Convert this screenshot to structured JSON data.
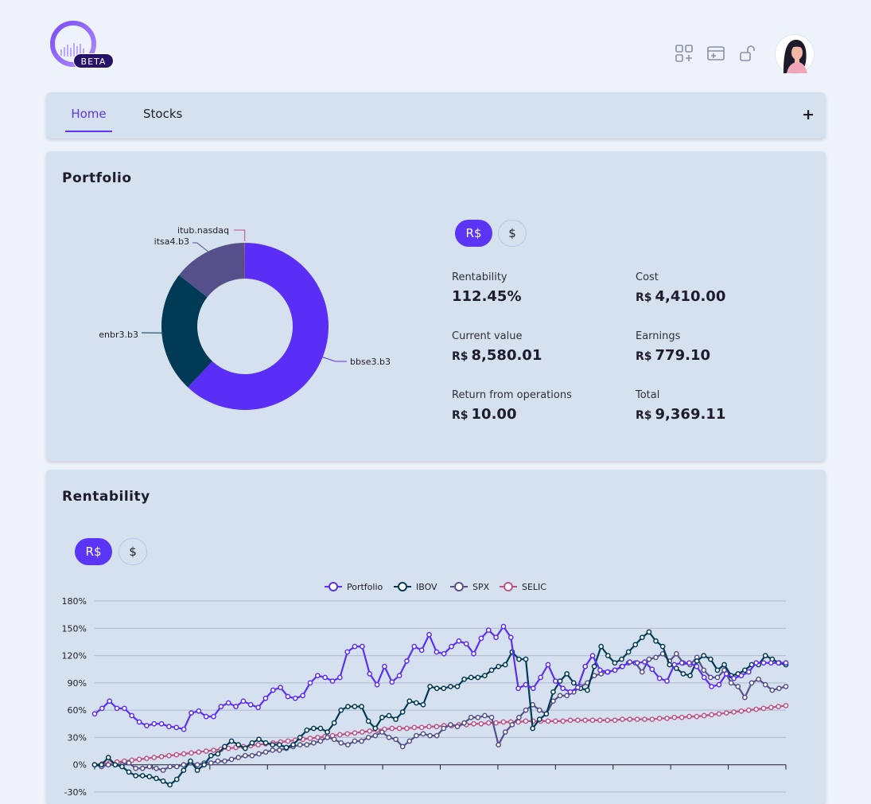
{
  "header": {
    "logo_badge": "BETA",
    "icons": [
      "add-widget-icon",
      "add-card-icon",
      "unlock-icon"
    ]
  },
  "nav": {
    "tabs": [
      {
        "label": "Home",
        "active": true
      },
      {
        "label": "Stocks",
        "active": false
      }
    ],
    "add_label": "+"
  },
  "portfolio": {
    "title": "Portfolio",
    "currency_toggle": {
      "selected": "R$",
      "other": "$"
    },
    "donut": [
      {
        "name": "bbse3.b3",
        "value": 62.0,
        "color": "#5b2ef5"
      },
      {
        "name": "enbr3.b3",
        "value": 23.5,
        "color": "#003a54"
      },
      {
        "name": "itsa4.b3",
        "value": 14.4,
        "color": "#56508a"
      },
      {
        "name": "itub.nasdaq",
        "value": 0.1,
        "color": "#c0508a"
      }
    ],
    "stats": [
      {
        "label": "Rentability",
        "currency": "",
        "value": "112.45%"
      },
      {
        "label": "Cost",
        "currency": "R$",
        "value": "4,410.00"
      },
      {
        "label": "Current value",
        "currency": "R$",
        "value": "8,580.01"
      },
      {
        "label": "Earnings",
        "currency": "R$",
        "value": "779.10"
      },
      {
        "label": "Return from operations",
        "currency": "R$",
        "value": "10.00"
      },
      {
        "label": "Total",
        "currency": "R$",
        "value": "9,369.11"
      }
    ]
  },
  "rentability": {
    "title": "Rentability",
    "currency_toggle": {
      "selected": "R$",
      "other": "$"
    }
  },
  "chart_data": {
    "type": "line",
    "y_ticks": [
      "180%",
      "150%",
      "120%",
      "90%",
      "60%",
      "30%",
      "0%",
      "-30%"
    ],
    "ylim": [
      -30,
      180
    ],
    "legend_position": "top-center",
    "grid": true,
    "series": [
      {
        "name": "Portfolio",
        "color": "#5b2ef5",
        "values": [
          56,
          62,
          70,
          62,
          62,
          54,
          47,
          43,
          45,
          45,
          42,
          41,
          39,
          57,
          59,
          53,
          53,
          64,
          68,
          64,
          70,
          66,
          63,
          73,
          82,
          85,
          75,
          73,
          76,
          90,
          98,
          96,
          92,
          96,
          124,
          130,
          130,
          100,
          88,
          108,
          91,
          98,
          114,
          130,
          126,
          143,
          124,
          122,
          130,
          136,
          133,
          122,
          139,
          148,
          140,
          152,
          140,
          84,
          88,
          84,
          96,
          110,
          92,
          84,
          80,
          85,
          108,
          120,
          104,
          102,
          104,
          108,
          113,
          112,
          113,
          105,
          95,
          92,
          110,
          112,
          112,
          108,
          96,
          86,
          88,
          100,
          95,
          98,
          102,
          112,
          112,
          112,
          112,
          112
        ]
      },
      {
        "name": "IBOV",
        "color": "#003a54",
        "values": [
          0,
          0,
          8,
          0,
          -2,
          -8,
          -12,
          -12,
          -13,
          -15,
          -18,
          -22,
          -16,
          -6,
          4,
          -6,
          0,
          10,
          12,
          20,
          26,
          22,
          18,
          24,
          28,
          24,
          22,
          22,
          19,
          22,
          30,
          38,
          40,
          40,
          36,
          46,
          60,
          64,
          64,
          64,
          48,
          40,
          52,
          54,
          50,
          58,
          70,
          68,
          66,
          86,
          84,
          84,
          86,
          86,
          94,
          96,
          96,
          98,
          104,
          108,
          110,
          124,
          116,
          116,
          40,
          50,
          56,
          80,
          92,
          100,
          90,
          84,
          82,
          108,
          130,
          120,
          112,
          116,
          124,
          132,
          140,
          146,
          136,
          130,
          110,
          106,
          100,
          98,
          114,
          120,
          116,
          104,
          110,
          98,
          100,
          104,
          110,
          110,
          120,
          116,
          112,
          110
        ]
      },
      {
        "name": "SPX",
        "color": "#56508a",
        "values": [
          0,
          -2,
          0,
          0,
          0,
          2,
          -4,
          -4,
          -2,
          -4,
          -6,
          -2,
          -2,
          0,
          2,
          0,
          2,
          2,
          4,
          4,
          6,
          8,
          10,
          10,
          12,
          14,
          16,
          16,
          18,
          20,
          22,
          22,
          24,
          26,
          30,
          28,
          24,
          22,
          26,
          26,
          30,
          32,
          36,
          30,
          28,
          20,
          26,
          32,
          34,
          32,
          32,
          40,
          44,
          42,
          46,
          52,
          52,
          54,
          52,
          22,
          36,
          44,
          52,
          60,
          66,
          60,
          56,
          70,
          76,
          76,
          80,
          86,
          90,
          98,
          100,
          102,
          104,
          108,
          112,
          112,
          102,
          116,
          118,
          122,
          114,
          122,
          112,
          110,
          118,
          104,
          96,
          96,
          104,
          90,
          86,
          74,
          90,
          94,
          88,
          82,
          84,
          86
        ]
      },
      {
        "name": "SELIC",
        "color": "#c0508a",
        "values": [
          0,
          1,
          2,
          3,
          4,
          5,
          6,
          7,
          8,
          9,
          10,
          11,
          12,
          13,
          14,
          15,
          16,
          17,
          18,
          19,
          20,
          21,
          22,
          23,
          24,
          25,
          26,
          27,
          28,
          29,
          30,
          31,
          32,
          33,
          34,
          35,
          36,
          37,
          38,
          39,
          40,
          40,
          40,
          41,
          41,
          42,
          42,
          43,
          43,
          44,
          44,
          45,
          45,
          46,
          46,
          47,
          47,
          47,
          48,
          48,
          48,
          48,
          48,
          48,
          49,
          49,
          49,
          49,
          49,
          49,
          49,
          50,
          50,
          50,
          50,
          50,
          51,
          51,
          52,
          52,
          53,
          53,
          54,
          55,
          56,
          57,
          58,
          59,
          60,
          61,
          62,
          63,
          64,
          65
        ]
      }
    ]
  }
}
